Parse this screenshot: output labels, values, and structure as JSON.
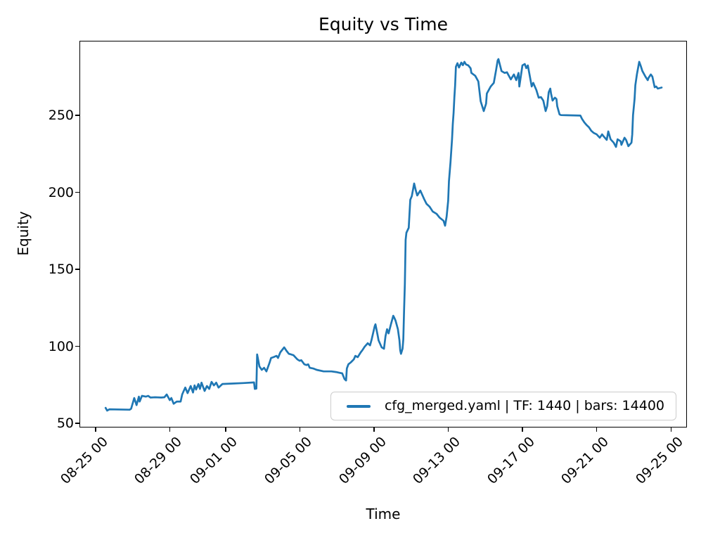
{
  "title": "Equity vs Time",
  "axes": {
    "xlabel": "Time",
    "ylabel": "Equity"
  },
  "legend": {
    "label": "cfg_merged.yaml | TF: 1440 | bars: 14400"
  },
  "colors": {
    "line": "#1f77b4",
    "legend_border": "#cccccc",
    "spine": "#000000",
    "text": "#000000"
  },
  "chart_data": {
    "type": "line",
    "title": "Equity vs Time",
    "xlabel": "Time",
    "ylabel": "Equity",
    "grid": false,
    "legend_position": "lower right inside",
    "legend_entries": [
      "cfg_merged.yaml | TF: 1440 | bars: 14400"
    ],
    "x_ticks": [
      "08-25 00",
      "08-29 00",
      "09-01 00",
      "09-05 00",
      "09-09 00",
      "09-13 00",
      "09-17 00",
      "09-21 00",
      "09-25 00"
    ],
    "y_ticks": [
      50,
      100,
      150,
      200,
      250
    ],
    "xlim_days_from_08_25": [
      -0.87,
      31.86
    ],
    "ylim": [
      47.3,
      298.4
    ],
    "series": [
      {
        "name": "cfg_merged.yaml | TF: 1440 | bars: 14400",
        "color": "#1f77b4",
        "points": [
          [
            "08-25 12:00",
            60.5
          ],
          [
            "08-25 14:00",
            58.7
          ],
          [
            "08-25 17:00",
            59.6
          ],
          [
            "08-26 19:00",
            59.3
          ],
          [
            "08-26 21:00",
            60.0
          ],
          [
            "08-27 01:00",
            66.9
          ],
          [
            "08-27 04:00",
            62.3
          ],
          [
            "08-27 07:00",
            67.8
          ],
          [
            "08-27 08:00",
            64.6
          ],
          [
            "08-27 11:00",
            68.3
          ],
          [
            "08-27 16:00",
            67.8
          ],
          [
            "08-27 19:00",
            68.3
          ],
          [
            "08-27 22:00",
            67.2
          ],
          [
            "08-28 04:00",
            67.4
          ],
          [
            "08-28 12:00",
            67.2
          ],
          [
            "08-28 16:00",
            67.4
          ],
          [
            "08-28 19:00",
            69.2
          ],
          [
            "08-28 23:00",
            65.5
          ],
          [
            "08-29 01:00",
            66.9
          ],
          [
            "08-29 04:00",
            63.2
          ],
          [
            "08-29 08:00",
            64.6
          ],
          [
            "08-29 13:00",
            64.6
          ],
          [
            "08-29 15:00",
            69.2
          ],
          [
            "08-29 17:00",
            71.5
          ],
          [
            "08-29 19:00",
            73.7
          ],
          [
            "08-29 22:00",
            70.1
          ],
          [
            "08-30 02:00",
            74.7
          ],
          [
            "08-30 05:00",
            70.5
          ],
          [
            "08-30 07:00",
            75.1
          ],
          [
            "08-30 09:00",
            72.4
          ],
          [
            "08-30 12:00",
            76.0
          ],
          [
            "08-30 14:00",
            72.8
          ],
          [
            "08-30 16:00",
            76.9
          ],
          [
            "08-30 20:00",
            71.5
          ],
          [
            "08-30 23:00",
            74.7
          ],
          [
            "08-31 02:00",
            72.8
          ],
          [
            "08-31 05:00",
            77.4
          ],
          [
            "08-31 08:00",
            75.1
          ],
          [
            "08-31 11:00",
            76.9
          ],
          [
            "08-31 14:00",
            73.7
          ],
          [
            "08-31 19:00",
            76.0
          ],
          [
            "09-01 08:00",
            76.3
          ],
          [
            "09-01 22:00",
            76.6
          ],
          [
            "09-02 12:00",
            77.0
          ],
          [
            "09-02 13:00",
            72.8
          ],
          [
            "09-02 15:00",
            73.0
          ],
          [
            "09-02 16:00",
            95.2
          ],
          [
            "09-02 19:00",
            87.4
          ],
          [
            "09-02 22:00",
            85.2
          ],
          [
            "09-03 01:00",
            86.5
          ],
          [
            "09-03 04:00",
            84.2
          ],
          [
            "09-03 08:00",
            89.7
          ],
          [
            "09-03 10:00",
            92.9
          ],
          [
            "09-03 13:00",
            93.4
          ],
          [
            "09-03 17:00",
            94.3
          ],
          [
            "09-03 19:00",
            92.9
          ],
          [
            "09-03 22:00",
            96.6
          ],
          [
            "09-04 03:00",
            99.8
          ],
          [
            "09-04 06:00",
            97.5
          ],
          [
            "09-04 09:00",
            95.6
          ],
          [
            "09-04 12:00",
            95.2
          ],
          [
            "09-04 15:00",
            94.7
          ],
          [
            "09-04 20:00",
            92.0
          ],
          [
            "09-04 23:00",
            91.1
          ],
          [
            "09-05 01:00",
            91.5
          ],
          [
            "09-05 05:00",
            88.8
          ],
          [
            "09-05 08:00",
            88.3
          ],
          [
            "09-05 10:00",
            88.8
          ],
          [
            "09-05 12:00",
            86.5
          ],
          [
            "09-05 17:00",
            86.0
          ],
          [
            "09-05 21:00",
            85.2
          ],
          [
            "09-06 06:00",
            84.2
          ],
          [
            "09-06 16:00",
            84.2
          ],
          [
            "09-06 22:00",
            83.8
          ],
          [
            "09-07 02:00",
            83.3
          ],
          [
            "09-07 06:00",
            82.9
          ],
          [
            "09-07 09:00",
            79.2
          ],
          [
            "09-07 11:00",
            78.3
          ],
          [
            "09-07 12:00",
            86.1
          ],
          [
            "09-07 14:00",
            88.8
          ],
          [
            "09-07 17:00",
            90.0
          ],
          [
            "09-07 21:00",
            92.0
          ],
          [
            "09-07 23:00",
            94.3
          ],
          [
            "09-08 02:00",
            93.4
          ],
          [
            "09-08 06:00",
            96.6
          ],
          [
            "09-08 08:00",
            97.9
          ],
          [
            "09-08 11:00",
            100.2
          ],
          [
            "09-08 15:00",
            102.5
          ],
          [
            "09-08 18:00",
            101.1
          ],
          [
            "09-08 20:00",
            104.8
          ],
          [
            "09-09 00:00",
            113.5
          ],
          [
            "09-09 01:00",
            114.8
          ],
          [
            "09-09 04:00",
            107.1
          ],
          [
            "09-09 05:00",
            104.3
          ],
          [
            "09-09 09:00",
            99.8
          ],
          [
            "09-09 12:00",
            98.9
          ],
          [
            "09-09 14:00",
            107.1
          ],
          [
            "09-09 16:00",
            111.6
          ],
          [
            "09-09 18:00",
            108.9
          ],
          [
            "09-09 21:00",
            114.8
          ],
          [
            "09-10 00:00",
            120.3
          ],
          [
            "09-10 01:00",
            119.4
          ],
          [
            "09-10 03:00",
            117.1
          ],
          [
            "09-10 06:00",
            111.6
          ],
          [
            "09-10 08:00",
            104.3
          ],
          [
            "09-10 09:00",
            97.9
          ],
          [
            "09-10 10:00",
            95.6
          ],
          [
            "09-10 12:00",
            98.9
          ],
          [
            "09-10 13:00",
            105.0
          ],
          [
            "09-10 14:00",
            124.0
          ],
          [
            "09-10 15:00",
            140.9
          ],
          [
            "09-10 16:00",
            169.6
          ],
          [
            "09-10 17:00",
            174.2
          ],
          [
            "09-10 20:00",
            177.4
          ],
          [
            "09-10 22:00",
            195.6
          ],
          [
            "09-11 00:00",
            198.0
          ],
          [
            "09-11 03:00",
            206.2
          ],
          [
            "09-11 05:00",
            202.0
          ],
          [
            "09-11 07:00",
            198.4
          ],
          [
            "09-11 11:00",
            201.6
          ],
          [
            "09-11 16:00",
            196.0
          ],
          [
            "09-11 19:00",
            193.0
          ],
          [
            "09-11 23:00",
            191.1
          ],
          [
            "09-12 03:00",
            188.0
          ],
          [
            "09-12 08:00",
            186.5
          ],
          [
            "09-12 12:00",
            184.0
          ],
          [
            "09-12 17:00",
            182.0
          ],
          [
            "09-12 19:00",
            178.8
          ],
          [
            "09-12 21:00",
            184.7
          ],
          [
            "09-12 23:00",
            195.0
          ],
          [
            "09-13 00:00",
            207.6
          ],
          [
            "09-13 02:00",
            219.9
          ],
          [
            "09-13 04:00",
            235.0
          ],
          [
            "09-13 05:00",
            245.0
          ],
          [
            "09-13 06:00",
            252.0
          ],
          [
            "09-13 07:00",
            262.0
          ],
          [
            "09-13 08:00",
            270.0
          ],
          [
            "09-13 09:00",
            282.0
          ],
          [
            "09-13 11:00",
            284.3
          ],
          [
            "09-13 13:00",
            281.5
          ],
          [
            "09-13 16:00",
            284.7
          ],
          [
            "09-13 18:00",
            283.0
          ],
          [
            "09-13 20:00",
            285.2
          ],
          [
            "09-13 22:00",
            283.5
          ],
          [
            "09-14 01:00",
            282.9
          ],
          [
            "09-14 04:00",
            281.0
          ],
          [
            "09-14 05:00",
            278.0
          ],
          [
            "09-14 10:00",
            276.1
          ],
          [
            "09-14 14:00",
            272.4
          ],
          [
            "09-14 17:00",
            259.6
          ],
          [
            "09-14 19:00",
            256.4
          ],
          [
            "09-14 21:00",
            253.2
          ],
          [
            "09-15 00:00",
            258.0
          ],
          [
            "09-15 01:00",
            264.6
          ],
          [
            "09-15 06:00",
            269.2
          ],
          [
            "09-15 10:00",
            271.5
          ],
          [
            "09-15 13:00",
            280.0
          ],
          [
            "09-15 15:00",
            286.1
          ],
          [
            "09-15 16:00",
            287.0
          ],
          [
            "09-15 18:00",
            283.0
          ],
          [
            "09-15 20:00",
            279.2
          ],
          [
            "09-16 00:00",
            278.0
          ],
          [
            "09-16 03:00",
            278.4
          ],
          [
            "09-16 08:00",
            273.8
          ],
          [
            "09-16 12:00",
            277.0
          ],
          [
            "09-16 15:00",
            273.3
          ],
          [
            "09-16 18:00",
            278.0
          ],
          [
            "09-16 19:00",
            269.2
          ],
          [
            "09-16 23:00",
            282.9
          ],
          [
            "09-17 02:00",
            283.8
          ],
          [
            "09-17 04:00",
            281.1
          ],
          [
            "09-17 06:00",
            282.9
          ],
          [
            "09-17 09:00",
            274.7
          ],
          [
            "09-17 11:00",
            269.2
          ],
          [
            "09-17 13:00",
            271.5
          ],
          [
            "09-17 17:00",
            266.9
          ],
          [
            "09-17 20:00",
            261.9
          ],
          [
            "09-17 23:00",
            262.3
          ],
          [
            "09-18 02:00",
            260.0
          ],
          [
            "09-18 05:00",
            253.2
          ],
          [
            "09-18 07:00",
            256.4
          ],
          [
            "09-18 09:00",
            265.5
          ],
          [
            "09-18 11:00",
            267.8
          ],
          [
            "09-18 12:00",
            264.6
          ],
          [
            "09-18 14:00",
            260.0
          ],
          [
            "09-18 17:00",
            261.9
          ],
          [
            "09-18 19:00",
            261.0
          ],
          [
            "09-18 20:00",
            256.4
          ],
          [
            "09-18 23:00",
            251.0
          ],
          [
            "09-19 01:00",
            250.6
          ],
          [
            "09-19 08:00",
            250.5
          ],
          [
            "09-19 17:00",
            250.4
          ],
          [
            "09-20 02:00",
            250.3
          ],
          [
            "09-20 04:00",
            248.2
          ],
          [
            "09-20 07:00",
            245.9
          ],
          [
            "09-20 10:00",
            244.1
          ],
          [
            "09-20 13:00",
            242.7
          ],
          [
            "09-20 16:00",
            240.4
          ],
          [
            "09-20 19:00",
            239.1
          ],
          [
            "09-20 23:00",
            238.1
          ],
          [
            "09-21 03:00",
            235.9
          ],
          [
            "09-21 06:00",
            238.1
          ],
          [
            "09-21 08:00",
            236.8
          ],
          [
            "09-21 12:00",
            234.5
          ],
          [
            "09-21 14:00",
            240.0
          ],
          [
            "09-21 17:00",
            234.9
          ],
          [
            "09-21 21:00",
            232.7
          ],
          [
            "09-22 00:00",
            229.9
          ],
          [
            "09-22 02:00",
            234.9
          ],
          [
            "09-22 06:00",
            233.6
          ],
          [
            "09-22 07:00",
            231.3
          ],
          [
            "09-22 11:00",
            235.9
          ],
          [
            "09-22 13:00",
            234.5
          ],
          [
            "09-22 16:00",
            230.4
          ],
          [
            "09-22 20:00",
            232.7
          ],
          [
            "09-22 21:00",
            238.1
          ],
          [
            "09-22 22:00",
            250.5
          ],
          [
            "09-23 00:00",
            261.0
          ],
          [
            "09-23 01:00",
            270.0
          ],
          [
            "09-23 03:00",
            277.0
          ],
          [
            "09-23 06:00",
            285.2
          ],
          [
            "09-23 08:00",
            282.5
          ],
          [
            "09-23 10:00",
            279.3
          ],
          [
            "09-23 14:00",
            275.6
          ],
          [
            "09-23 17:00",
            273.3
          ],
          [
            "09-23 18:00",
            274.7
          ],
          [
            "09-23 21:00",
            277.0
          ],
          [
            "09-23 23:00",
            275.6
          ],
          [
            "09-24 02:00",
            268.7
          ],
          [
            "09-24 04:00",
            269.2
          ],
          [
            "09-24 06:00",
            267.8
          ],
          [
            "09-24 11:00",
            268.5
          ]
        ]
      }
    ]
  }
}
